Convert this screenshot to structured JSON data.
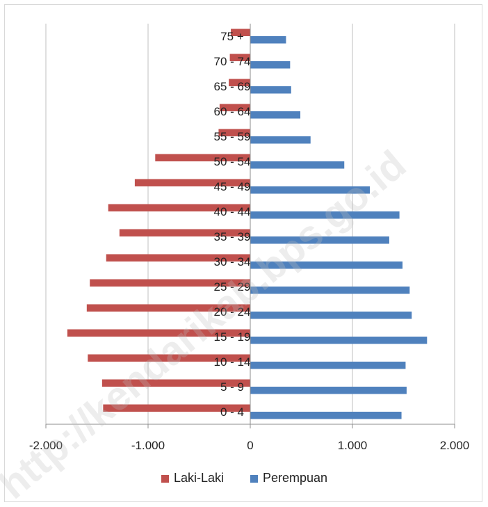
{
  "chart_data": {
    "type": "bar",
    "orientation": "horizontal",
    "categories": [
      "0 - 4",
      "5 - 9",
      "10 - 14",
      "15 - 19",
      "20 - 24",
      "25 - 29",
      "30 - 34",
      "35 - 39",
      "40 - 44",
      "45 - 49",
      "50 - 54",
      "55 - 59",
      "60 - 64",
      "65 - 69",
      "70 - 74",
      "75 +"
    ],
    "series": [
      {
        "name": "Laki-Laki",
        "color": "#C0504D",
        "values": [
          -1440,
          -1450,
          -1590,
          -1790,
          -1600,
          -1570,
          -1410,
          -1280,
          -1390,
          -1130,
          -930,
          -310,
          -300,
          -210,
          -200,
          -190
        ]
      },
      {
        "name": "Perempuan",
        "color": "#4F81BD",
        "values": [
          1480,
          1530,
          1520,
          1730,
          1580,
          1560,
          1490,
          1360,
          1460,
          1170,
          920,
          590,
          490,
          400,
          390,
          350
        ]
      }
    ],
    "xlim": [
      -2000,
      2000
    ],
    "xticks": [
      -2000,
      -1000,
      0,
      1000,
      2000
    ],
    "xtick_labels": [
      "-2.000",
      "-1.000",
      "0",
      "1.000",
      "2.000"
    ],
    "grid": "vertical",
    "legend_position": "bottom",
    "title": "",
    "xlabel": "",
    "ylabel": ""
  },
  "watermark": "http://kendarikab.bps.go.id"
}
